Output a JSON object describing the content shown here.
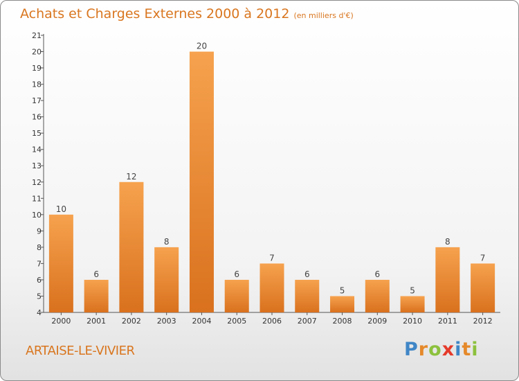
{
  "chart_data": {
    "type": "bar",
    "title": "Achats et Charges Externes 2000 à 2012",
    "subtitle": "(en milliers d'€)",
    "categories": [
      "2000",
      "2001",
      "2002",
      "2003",
      "2004",
      "2005",
      "2006",
      "2007",
      "2008",
      "2009",
      "2010",
      "2011",
      "2012"
    ],
    "values": [
      10,
      6,
      12,
      8,
      20,
      6,
      7,
      6,
      5,
      6,
      5,
      8,
      7
    ],
    "ylim": [
      4,
      21
    ],
    "yticks": [
      4,
      5,
      6,
      7,
      8,
      9,
      10,
      11,
      12,
      13,
      14,
      15,
      16,
      17,
      18,
      19,
      20,
      21
    ],
    "xlabel": "",
    "ylabel": "",
    "grid": false,
    "bar_color_top": "#f6a24e",
    "bar_color_bottom": "#d9711e"
  },
  "town": "ARTAISE-LE-VIVIER",
  "brand": {
    "letters": [
      "P",
      "r",
      "o",
      "x",
      "i",
      "t",
      "i"
    ],
    "colors": [
      "#3f86c6",
      "#e5892a",
      "#8cc13d",
      "#e53a2a",
      "#3f86c6",
      "#e5892a",
      "#8cc13d"
    ]
  },
  "colors": {
    "accent": "#d9761f",
    "axis": "#555555"
  }
}
